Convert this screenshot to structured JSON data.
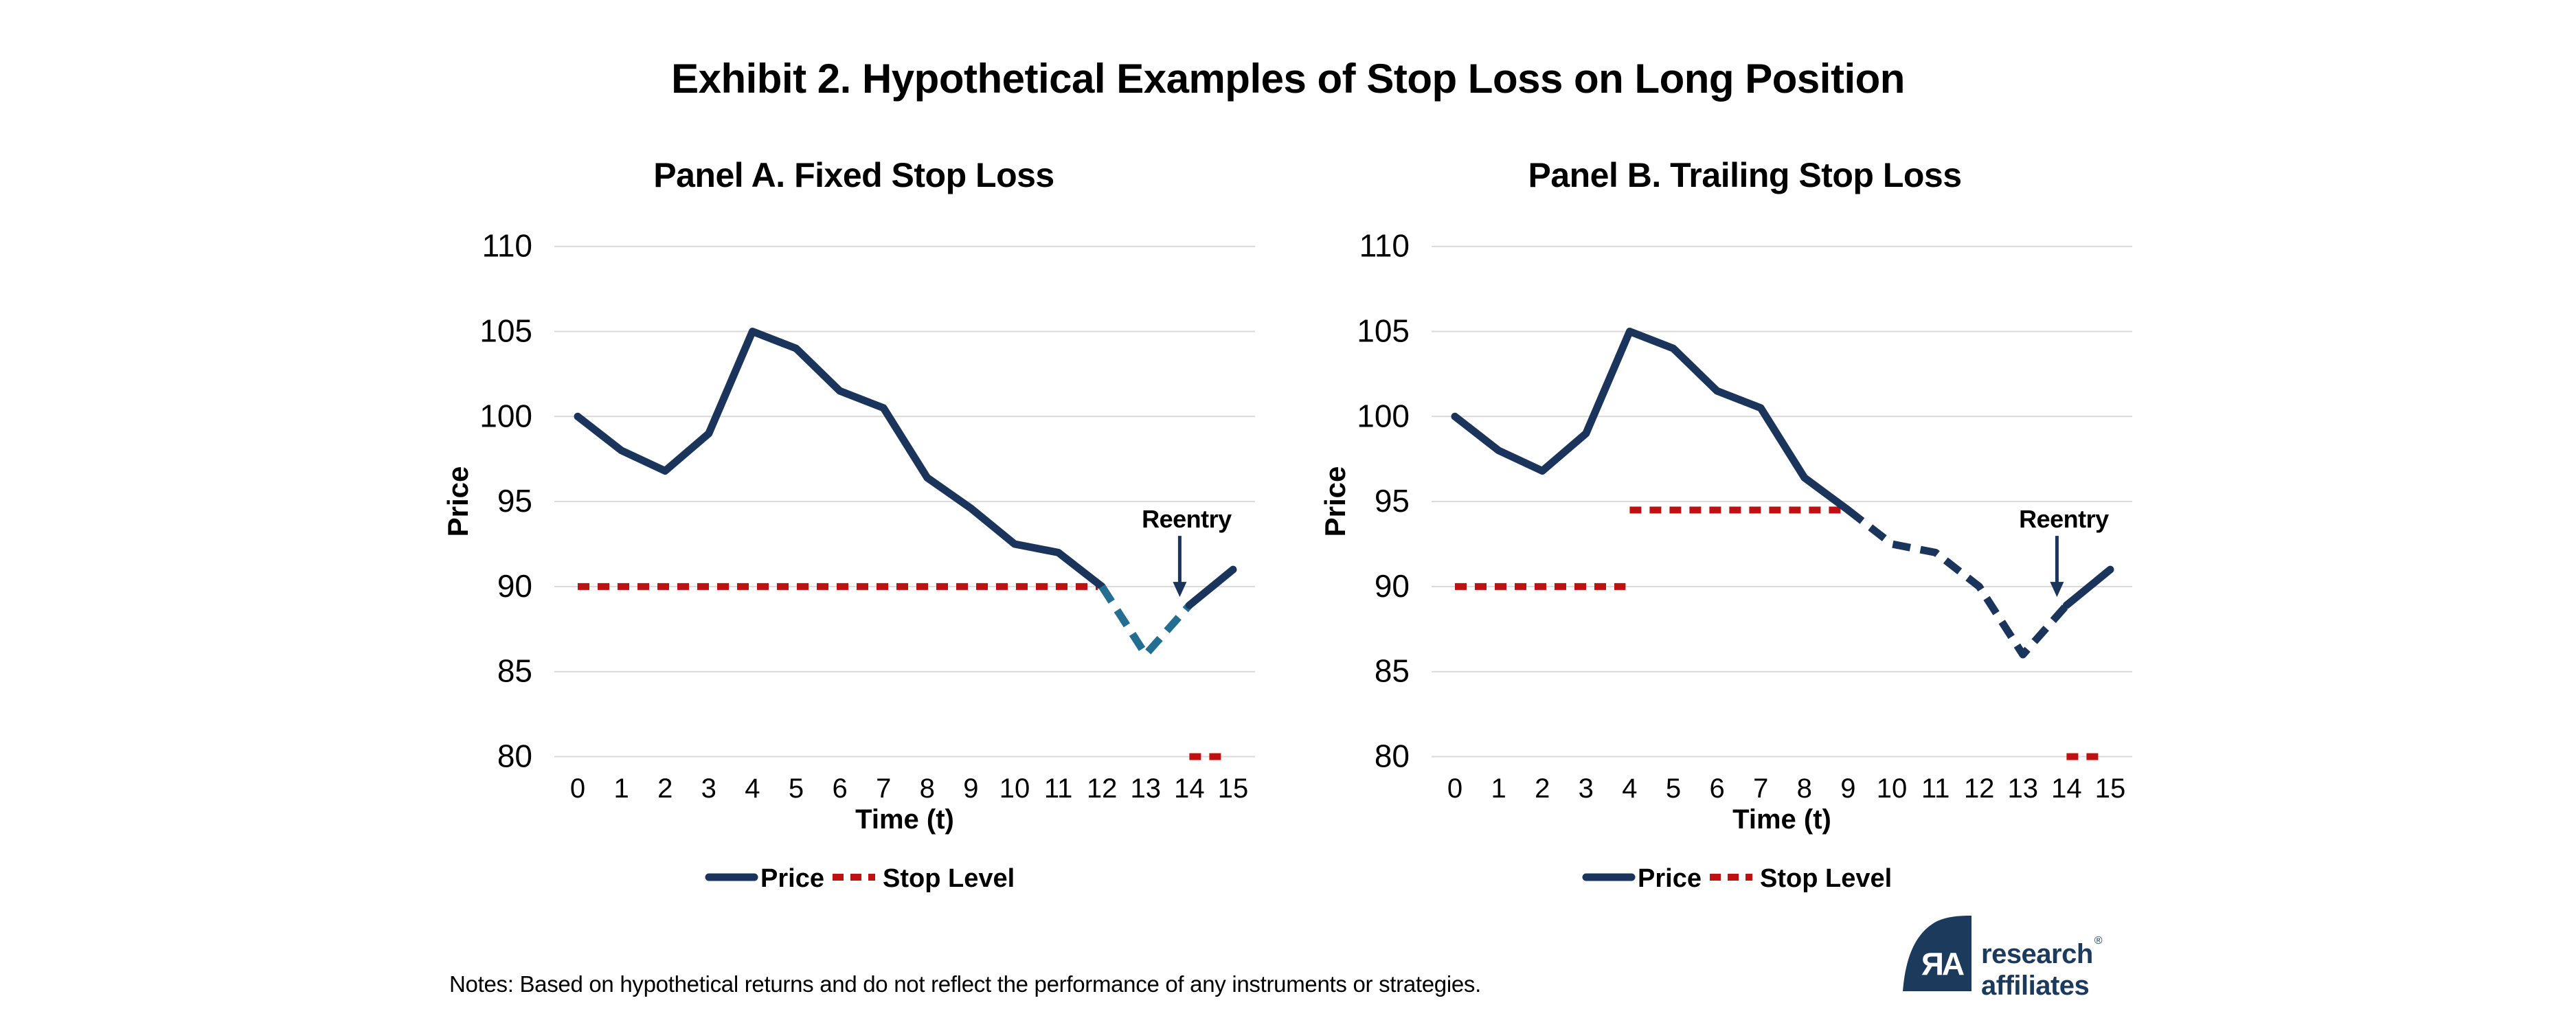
{
  "title": "Exhibit 2. Hypothetical Examples of Stop Loss on Long Position",
  "notes": "Notes: Based on hypothetical returns and do not reflect the performance of any instruments or strategies.",
  "logo": {
    "monogram": "ЯA",
    "line1": "research",
    "registered": "®",
    "line2": "affiliates"
  },
  "colors": {
    "navy": "#1A345B",
    "teal": "#246F91",
    "red": "#BF1111",
    "grid": "#D9D9D9",
    "text": "#000000",
    "logo_navy": "#1B3A5C"
  },
  "chart_data": [
    {
      "type": "line",
      "title": "Panel A. Fixed Stop Loss",
      "xlabel": "Time (t)",
      "ylabel": "Price",
      "x": [
        0,
        1,
        2,
        3,
        4,
        5,
        6,
        7,
        8,
        9,
        10,
        11,
        12,
        13,
        14,
        15
      ],
      "ylim": [
        80,
        110
      ],
      "yticks": [
        80,
        85,
        90,
        95,
        100,
        105,
        110
      ],
      "grid": "horizontal",
      "legend_position": "bottom",
      "legend": [
        {
          "label": "Price",
          "style": "solid",
          "color": "navy"
        },
        {
          "label": "Stop Level",
          "style": "dashed",
          "color": "red"
        }
      ],
      "series": [
        {
          "name": "price-held",
          "style": "solid",
          "color": "navy",
          "x": [
            0,
            1,
            2,
            3,
            4,
            5,
            6,
            7,
            8,
            9,
            10,
            11,
            12
          ],
          "values": [
            100,
            98,
            96.8,
            99,
            105,
            104,
            101.5,
            100.5,
            96.4,
            94.6,
            92.5,
            92,
            90
          ]
        },
        {
          "name": "price-stopped-out",
          "style": "dashed",
          "color": "teal",
          "x": [
            12,
            13,
            14
          ],
          "values": [
            90,
            86,
            88.9
          ]
        },
        {
          "name": "price-after-reentry",
          "style": "solid",
          "color": "navy",
          "x": [
            14,
            15
          ],
          "values": [
            88.9,
            91
          ]
        }
      ],
      "stop_levels": [
        {
          "y": 90,
          "from": 0,
          "to": 12
        },
        {
          "y": 80,
          "from": 14,
          "to": 15
        }
      ],
      "annotation": {
        "label": "Reentry",
        "x": 14,
        "y": 88.9
      }
    },
    {
      "type": "line",
      "title": "Panel B. Trailing Stop Loss",
      "xlabel": "Time (t)",
      "ylabel": "Price",
      "x": [
        0,
        1,
        2,
        3,
        4,
        5,
        6,
        7,
        8,
        9,
        10,
        11,
        12,
        13,
        14,
        15
      ],
      "ylim": [
        80,
        110
      ],
      "yticks": [
        80,
        85,
        90,
        95,
        100,
        105,
        110
      ],
      "grid": "horizontal",
      "legend_position": "bottom",
      "legend": [
        {
          "label": "Price",
          "style": "solid",
          "color": "navy"
        },
        {
          "label": "Stop Level",
          "style": "dashed",
          "color": "red"
        }
      ],
      "series": [
        {
          "name": "price-held",
          "style": "solid",
          "color": "navy",
          "x": [
            0,
            1,
            2,
            3,
            4,
            5,
            6,
            7,
            8,
            9
          ],
          "values": [
            100,
            98,
            96.8,
            99,
            105,
            104,
            101.5,
            100.5,
            96.4,
            94.5
          ]
        },
        {
          "name": "price-stopped-out",
          "style": "dashed",
          "color": "navy",
          "x": [
            9,
            10,
            11,
            12,
            13,
            14
          ],
          "values": [
            94.5,
            92.5,
            92,
            90,
            86,
            88.9
          ]
        },
        {
          "name": "price-after-reentry",
          "style": "solid",
          "color": "navy",
          "x": [
            14,
            15
          ],
          "values": [
            88.9,
            91
          ]
        }
      ],
      "stop_levels": [
        {
          "y": 90,
          "from": 0,
          "to": 4
        },
        {
          "y": 94.5,
          "from": 4,
          "to": 9
        },
        {
          "y": 80,
          "from": 14,
          "to": 15
        }
      ],
      "annotation": {
        "label": "Reentry",
        "x": 14,
        "y": 88.9
      }
    }
  ]
}
